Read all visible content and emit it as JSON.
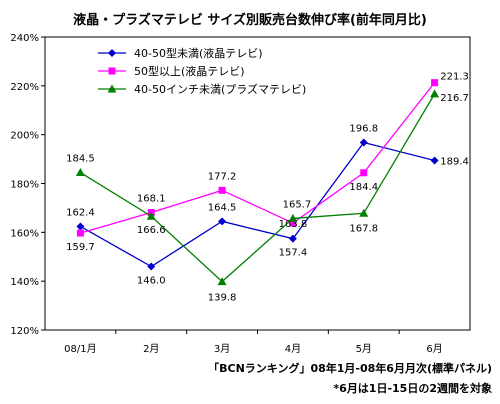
{
  "chart_data": {
    "type": "line",
    "title": "液晶・プラズマテレビ サイズ別販売台数伸び率(前年同月比)",
    "categories": [
      "08/1月",
      "2月",
      "3月",
      "4月",
      "5月",
      "6月"
    ],
    "y_ticks": [
      "120%",
      "140%",
      "160%",
      "180%",
      "200%",
      "220%",
      "240%"
    ],
    "ylim": [
      120,
      240
    ],
    "grid": false,
    "legend_position": "top-left",
    "series": [
      {
        "name": "40-50型未満(液晶テレビ)",
        "color": "#0000cc",
        "marker": "diamond",
        "values": [
          162.4,
          146.0,
          164.5,
          157.4,
          196.8,
          189.4
        ],
        "labels": [
          "162.4",
          "146.0",
          "164.5",
          "157.4",
          "196.8",
          "189.4"
        ]
      },
      {
        "name": "50型以上(液晶テレビ)",
        "color": "#ff00ff",
        "marker": "square",
        "values": [
          159.7,
          168.1,
          177.2,
          163.8,
          184.4,
          221.3
        ],
        "labels": [
          "159.7",
          "168.1",
          "177.2",
          "163.8",
          "184.4",
          "221.3"
        ]
      },
      {
        "name": "40-50インチ未満(プラズマテレビ)",
        "color": "#008000",
        "marker": "triangle",
        "values": [
          184.5,
          166.6,
          139.8,
          165.7,
          167.8,
          216.7
        ],
        "labels": [
          "184.5",
          "166.6",
          "139.8",
          "165.7",
          "167.8",
          "216.7"
        ]
      }
    ]
  },
  "notes": {
    "source": "「BCNランキング」08年1月-08年6月月次(標準パネル)",
    "footnote": "*6月は1日-15日の2週間を対象"
  }
}
